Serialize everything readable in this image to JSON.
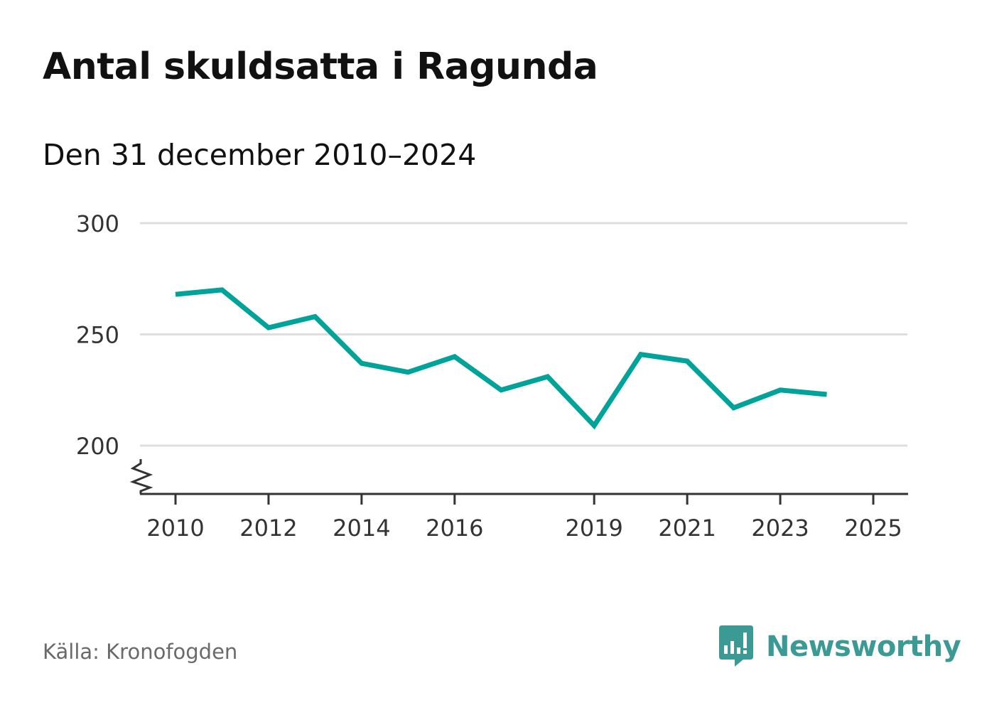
{
  "header": {
    "title": "Antal skuldsatta i Ragunda",
    "subtitle": "Den 31 december 2010–2024"
  },
  "footer": {
    "source": "Källa: Kronofogden",
    "brand": "Newsworthy",
    "brand_icon": "newsworthy-bar-chart-speech-bubble-icon"
  },
  "colors": {
    "line": "#00a39a",
    "grid": "#dedede",
    "axis": "#333333",
    "brand": "#3b9a94"
  },
  "chart_data": {
    "type": "line",
    "x": [
      2010,
      2011,
      2012,
      2013,
      2014,
      2015,
      2016,
      2017,
      2018,
      2019,
      2020,
      2021,
      2022,
      2023,
      2024
    ],
    "series": [
      {
        "values": [
          268,
          270,
          253,
          258,
          237,
          233,
          240,
          225,
          231,
          209,
          241,
          238,
          217,
          225,
          223
        ]
      }
    ],
    "x_ticks": [
      2010,
      2012,
      2014,
      2016,
      2019,
      2021,
      2023,
      2025
    ],
    "y_ticks": [
      200,
      250,
      300
    ],
    "xlim": [
      2010,
      2025
    ],
    "ylim": [
      178,
      300
    ],
    "y_axis_break": true,
    "grid": "horizontal",
    "legend": "none"
  }
}
